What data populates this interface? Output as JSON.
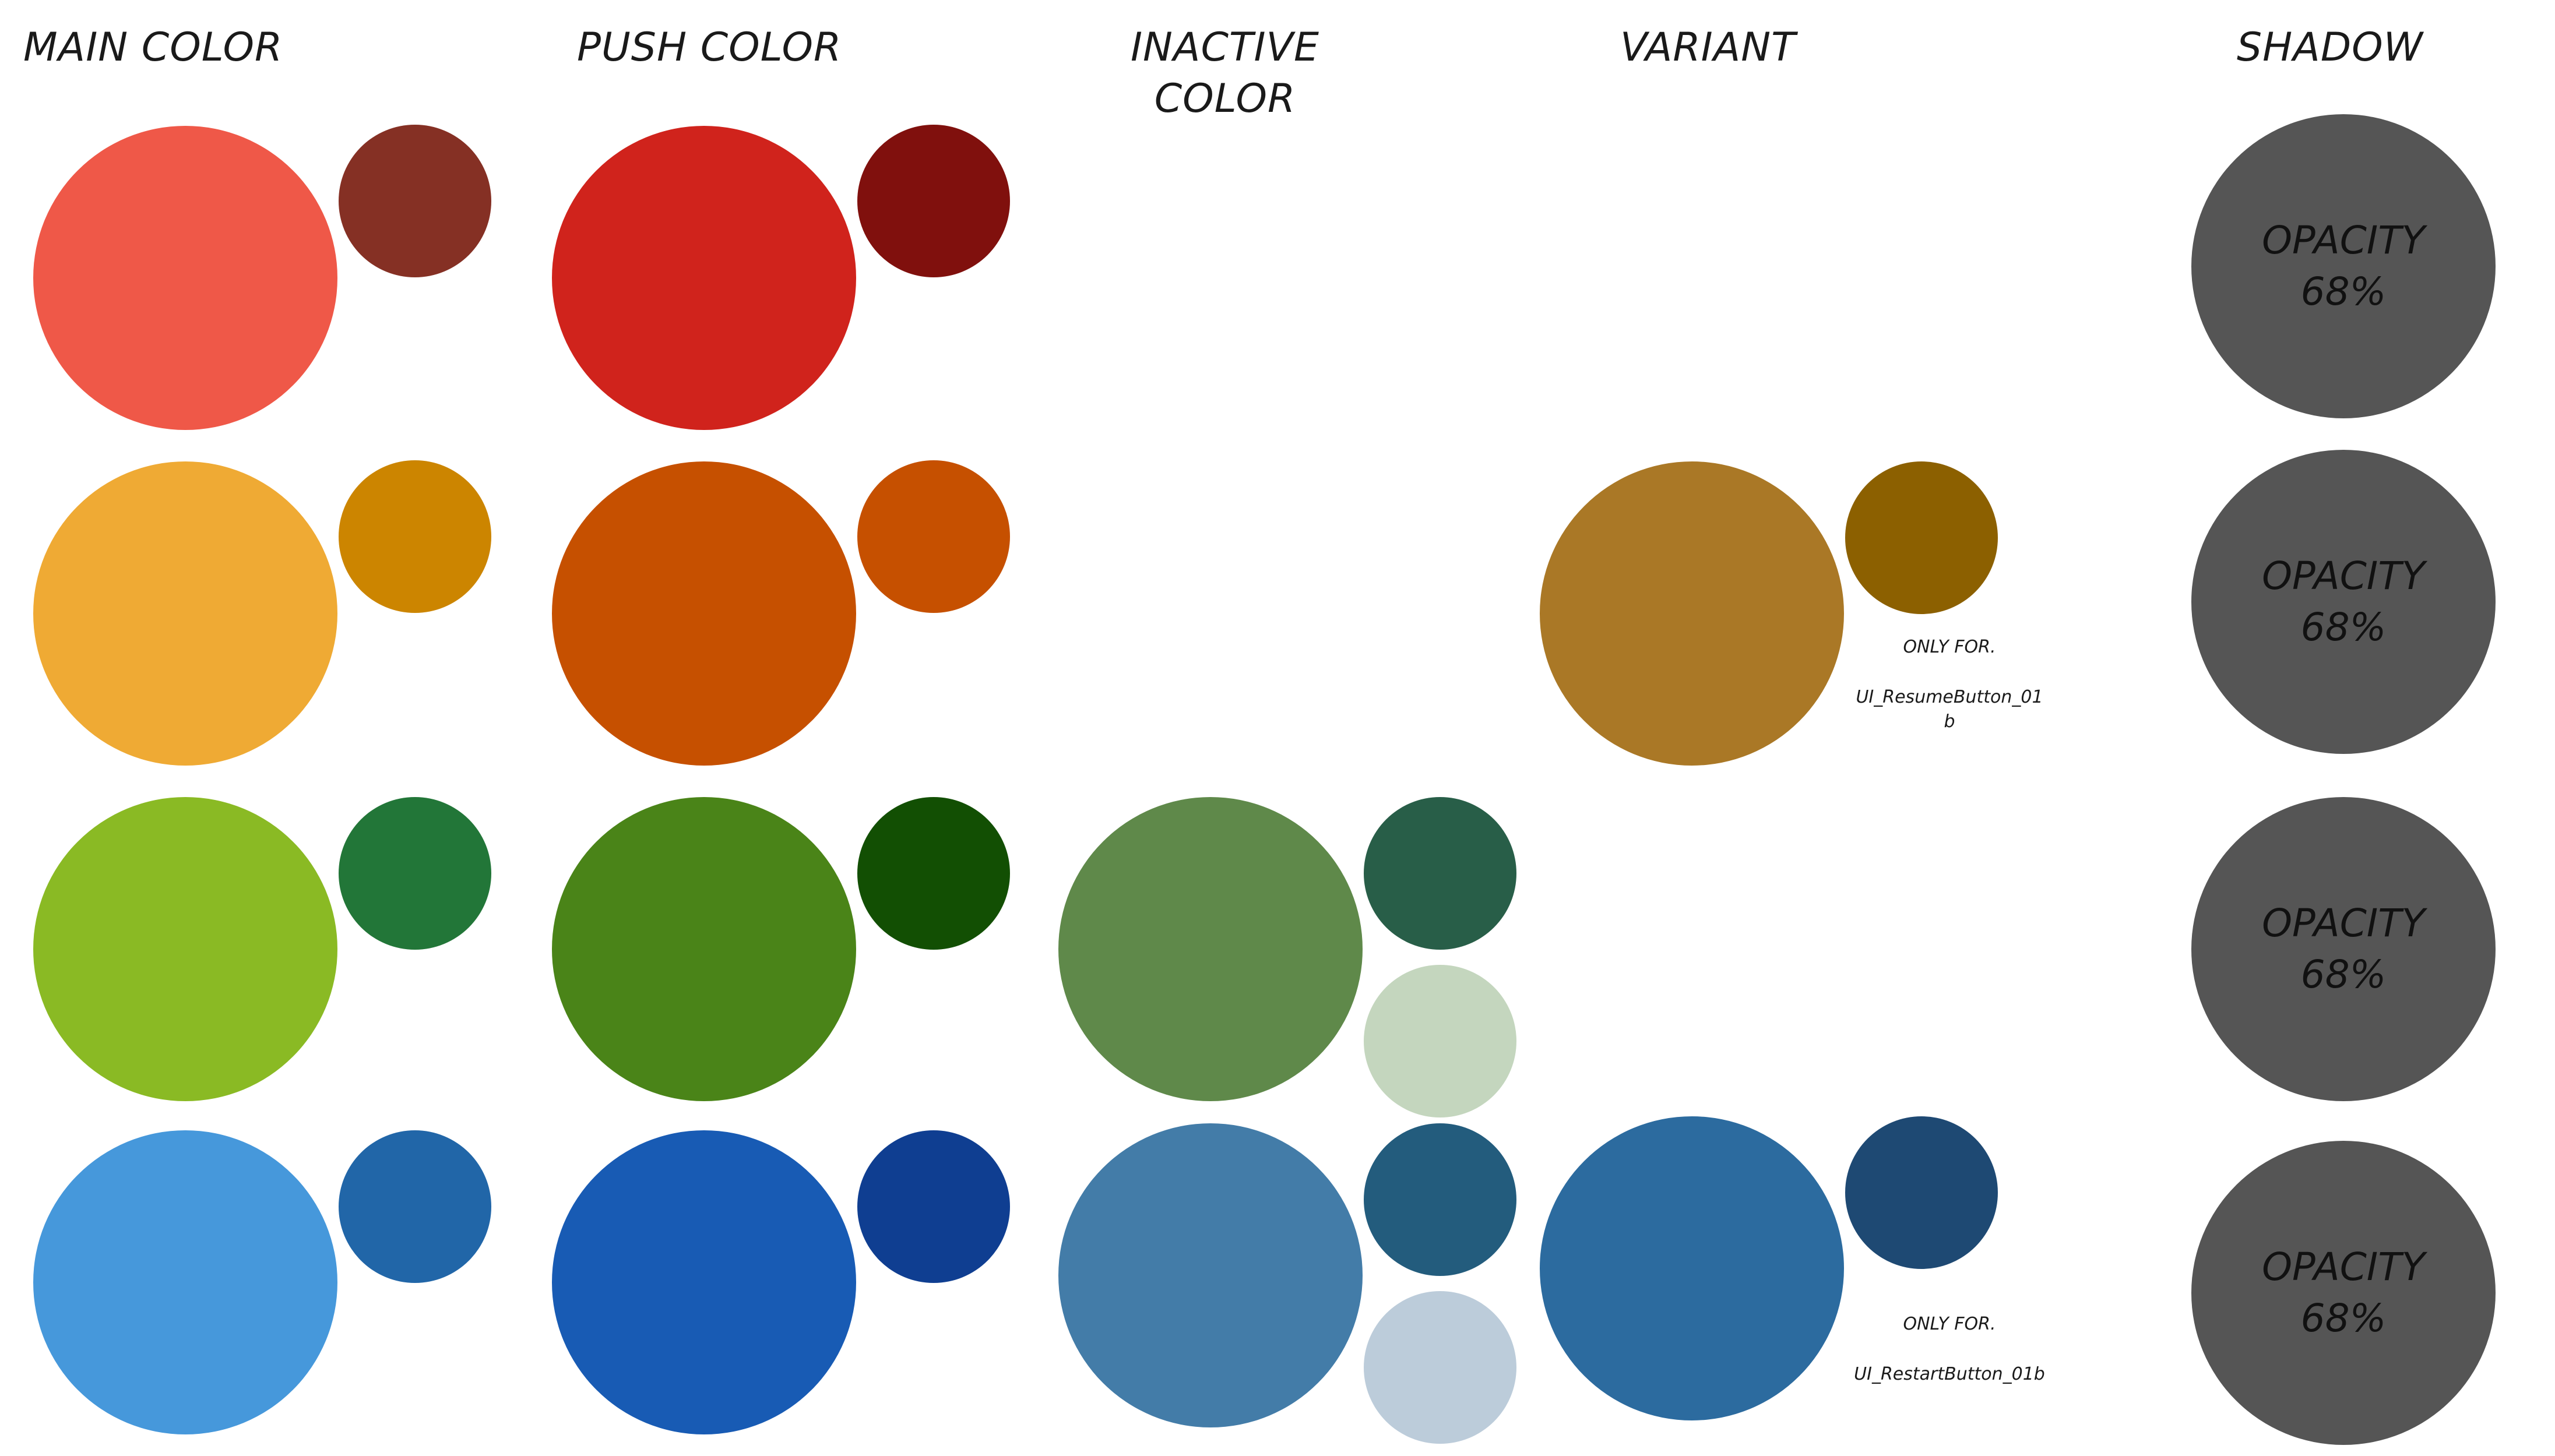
{
  "headers": {
    "main": "MAIN COLOR",
    "push": "PUSH COLOR",
    "inactive_line1": "INACTIVE",
    "inactive_line2": "COLOR",
    "variant": "VARIANT",
    "shadow": "SHADOW"
  },
  "colors": {
    "row1": {
      "main": "#EF5848",
      "main_accent": "#853024",
      "push": "#D0231C",
      "push_accent": "#80100D"
    },
    "row2": {
      "main": "#EFAA34",
      "main_accent": "#CC8500",
      "push": "#C65000",
      "push_accent": "#C65000",
      "variant": "#AA7826",
      "variant_accent": "#8C6000"
    },
    "row3": {
      "main": "#8ABA24",
      "main_accent": "#227638",
      "push": "#4A8418",
      "push_accent": "#124F03",
      "inactive": "#5F894A",
      "inactive_accent": "#285E48",
      "inactive_light": "#C4D6BE"
    },
    "row4": {
      "main": "#4698DB",
      "main_accent": "#2166A8",
      "push": "#185BB4",
      "push_accent": "#0F3E91",
      "inactive": "#437CA8",
      "inactive_accent": "#235C7D",
      "inactive_light": "#BCCCDA",
      "variant": "#2C6B9F",
      "variant_accent": "#1E4973"
    },
    "shadow": "#555555"
  },
  "shadow": {
    "row1": {
      "line1": "OPACITY",
      "line2": "68%"
    },
    "row2": {
      "line1": "OPACITY",
      "line2": "68%"
    },
    "row3": {
      "line1": "OPACITY",
      "line2": "68%"
    },
    "row4": {
      "line1": "OPACITY",
      "line2": "68%"
    }
  },
  "notes": {
    "resume": {
      "line1": "ONLY FOR.",
      "line2": "UI_ResumeButton_01",
      "line3": "b"
    },
    "restart": {
      "line1": "ONLY FOR.",
      "line2": "UI_RestartButton_01b"
    }
  }
}
